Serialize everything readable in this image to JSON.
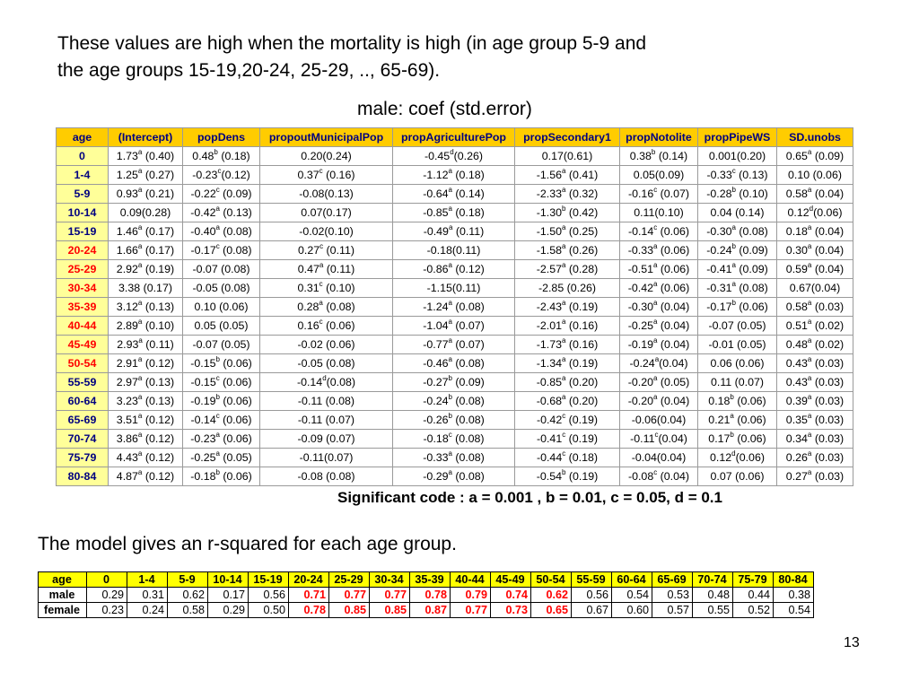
{
  "intro": {
    "line1": "These values are high when the mortality is high (in age group 5-9 and",
    "line2": "the age groups 15-19,20-24, 25-29, .., 65-69)."
  },
  "subtitle": "male: coef (std.error)",
  "coef_table": {
    "headers": [
      "age",
      "(Intercept)",
      "popDens",
      "propoutMunicipalPop",
      "propAgriculturePop",
      "propSecondary1",
      "propNotolite",
      "propPipeWS",
      "SD.unobs"
    ],
    "rows": [
      {
        "age": "0",
        "red": false,
        "cells": [
          [
            "1.73",
            "a",
            " (0.40)"
          ],
          [
            "0.48",
            "b",
            " (0.18)"
          ],
          [
            "0.20(0.24)",
            "",
            ""
          ],
          [
            "-0.45",
            "d",
            "(0.26)"
          ],
          [
            "0.17(0.61)",
            "",
            ""
          ],
          [
            "0.38",
            "b",
            " (0.14)"
          ],
          [
            "0.001(0.20)",
            "",
            ""
          ],
          [
            "0.65",
            "a",
            " (0.09)"
          ]
        ]
      },
      {
        "age": "1-4",
        "red": false,
        "cells": [
          [
            "1.25",
            "a",
            " (0.27)"
          ],
          [
            "-0.23",
            "c",
            "(0.12)"
          ],
          [
            "0.37",
            "c",
            " (0.16)"
          ],
          [
            "-1.12",
            "a",
            " (0.18)"
          ],
          [
            "-1.56",
            "a",
            " (0.41)"
          ],
          [
            "0.05(0.09)",
            "",
            ""
          ],
          [
            "-0.33",
            "c",
            " (0.13)"
          ],
          [
            "0.10 (0.06)",
            "",
            ""
          ]
        ]
      },
      {
        "age": "5-9",
        "red": false,
        "cells": [
          [
            "0.93",
            "a",
            " (0.21)"
          ],
          [
            "-0.22",
            "c",
            " (0.09)"
          ],
          [
            "-0.08(0.13)",
            "",
            ""
          ],
          [
            "-0.64",
            "a",
            " (0.14)"
          ],
          [
            "-2.33",
            "a",
            " (0.32)"
          ],
          [
            "-0.16",
            "c",
            " (0.07)"
          ],
          [
            "-0.28",
            "b",
            " (0.10)"
          ],
          [
            "0.58",
            "a",
            " (0.04)"
          ]
        ]
      },
      {
        "age": "10-14",
        "red": false,
        "cells": [
          [
            "0.09(0.28)",
            "",
            ""
          ],
          [
            "-0.42",
            "a",
            " (0.13)"
          ],
          [
            "0.07(0.17)",
            "",
            ""
          ],
          [
            "-0.85",
            "a",
            " (0.18)"
          ],
          [
            "-1.30",
            "b",
            " (0.42)"
          ],
          [
            "0.11(0.10)",
            "",
            ""
          ],
          [
            "0.04 (0.14)",
            "",
            ""
          ],
          [
            "0.12",
            "d",
            "(0.06)"
          ]
        ]
      },
      {
        "age": "15-19",
        "red": false,
        "cells": [
          [
            "1.46",
            "a",
            " (0.17)"
          ],
          [
            "-0.40",
            "a",
            " (0.08)"
          ],
          [
            "-0.02(0.10)",
            "",
            ""
          ],
          [
            "-0.49",
            "a",
            " (0.11)"
          ],
          [
            "-1.50",
            "a",
            " (0.25)"
          ],
          [
            "-0.14",
            "c",
            " (0.06)"
          ],
          [
            "-0.30",
            "a",
            " (0.08)"
          ],
          [
            "0.18",
            "a",
            " (0.04)"
          ]
        ]
      },
      {
        "age": "20-24",
        "red": true,
        "cells": [
          [
            "1.66",
            "a",
            " (0.17)"
          ],
          [
            "-0.17",
            "c",
            " (0.08)"
          ],
          [
            "0.27",
            "c",
            " (0.11)"
          ],
          [
            "-0.18(0.11)",
            "",
            ""
          ],
          [
            "-1.58",
            "a",
            " (0.26)"
          ],
          [
            "-0.33",
            "a",
            " (0.06)"
          ],
          [
            "-0.24",
            "b",
            " (0.09)"
          ],
          [
            "0.30",
            "a",
            " (0.04)"
          ]
        ]
      },
      {
        "age": "25-29",
        "red": true,
        "cells": [
          [
            "2.92",
            "a",
            " (0.19)"
          ],
          [
            "-0.07 (0.08)",
            "",
            ""
          ],
          [
            "0.47",
            "a",
            " (0.11)"
          ],
          [
            "-0.86",
            "a",
            " (0.12)"
          ],
          [
            "-2.57",
            "a",
            " (0.28)"
          ],
          [
            "-0.51",
            "a",
            " (0.06)"
          ],
          [
            "-0.41",
            "a",
            " (0.09)"
          ],
          [
            "0.59",
            "a",
            " (0.04)"
          ]
        ]
      },
      {
        "age": "30-34",
        "red": true,
        "cells": [
          [
            "3.38 (0.17)",
            "",
            ""
          ],
          [
            "-0.05 (0.08)",
            "",
            ""
          ],
          [
            "0.31",
            "c",
            " (0.10)"
          ],
          [
            "-1.15(0.11)",
            "",
            ""
          ],
          [
            "-2.85 (0.26)",
            "",
            ""
          ],
          [
            "-0.42",
            "a",
            " (0.06)"
          ],
          [
            "-0.31",
            "a",
            " (0.08)"
          ],
          [
            "0.67(0.04)",
            "",
            ""
          ]
        ]
      },
      {
        "age": "35-39",
        "red": true,
        "cells": [
          [
            "3.12",
            "a",
            " (0.13)"
          ],
          [
            "0.10 (0.06)",
            "",
            ""
          ],
          [
            "0.28",
            "a",
            " (0.08)"
          ],
          [
            "-1.24",
            "a",
            " (0.08)"
          ],
          [
            "-2.43",
            "a",
            " (0.19)"
          ],
          [
            "-0.30",
            "a",
            " (0.04)"
          ],
          [
            "-0.17",
            "b",
            " (0.06)"
          ],
          [
            "0.58",
            "a",
            " (0.03)"
          ]
        ]
      },
      {
        "age": "40-44",
        "red": true,
        "cells": [
          [
            "2.89",
            "a",
            " (0.10)"
          ],
          [
            "0.05 (0.05)",
            "",
            ""
          ],
          [
            "0.16",
            "c",
            " (0.06)"
          ],
          [
            "-1.04",
            "a",
            " (0.07)"
          ],
          [
            "-2.01",
            "a",
            " (0.16)"
          ],
          [
            "-0.25",
            "a",
            " (0.04)"
          ],
          [
            "-0.07 (0.05)",
            "",
            ""
          ],
          [
            "0.51",
            "a",
            " (0.02)"
          ]
        ]
      },
      {
        "age": "45-49",
        "red": true,
        "cells": [
          [
            "2.93",
            "a",
            " (0.11)"
          ],
          [
            "-0.07 (0.05)",
            "",
            ""
          ],
          [
            "-0.02 (0.06)",
            "",
            ""
          ],
          [
            "-0.77",
            "a",
            " (0.07)"
          ],
          [
            "-1.73",
            "a",
            " (0.16)"
          ],
          [
            "-0.19",
            "a",
            " (0.04)"
          ],
          [
            "-0.01 (0.05)",
            "",
            ""
          ],
          [
            "0.48",
            "a",
            " (0.02)"
          ]
        ]
      },
      {
        "age": "50-54",
        "red": true,
        "cells": [
          [
            "2.91",
            "a",
            " (0.12)"
          ],
          [
            "-0.15",
            "b",
            " (0.06)"
          ],
          [
            "-0.05 (0.08)",
            "",
            ""
          ],
          [
            "-0.46",
            "a",
            " (0.08)"
          ],
          [
            "-1.34",
            "a",
            " (0.19)"
          ],
          [
            "-0.24",
            "a",
            "(0.04)"
          ],
          [
            "0.06 (0.06)",
            "",
            ""
          ],
          [
            "0.43",
            "a",
            " (0.03)"
          ]
        ]
      },
      {
        "age": "55-59",
        "red": false,
        "cells": [
          [
            "2.97",
            "a",
            " (0.13)"
          ],
          [
            "-0.15",
            "c",
            " (0.06)"
          ],
          [
            "-0.14",
            "d",
            "(0.08)"
          ],
          [
            "-0.27",
            "b",
            " (0.09)"
          ],
          [
            "-0.85",
            "a",
            " (0.20)"
          ],
          [
            "-0.20",
            "a",
            " (0.05)"
          ],
          [
            "0.11 (0.07)",
            "",
            ""
          ],
          [
            "0.43",
            "a",
            " (0.03)"
          ]
        ]
      },
      {
        "age": "60-64",
        "red": false,
        "cells": [
          [
            "3.23",
            "a",
            " (0.13)"
          ],
          [
            "-0.19",
            "b",
            " (0.06)"
          ],
          [
            "-0.11 (0.08)",
            "",
            ""
          ],
          [
            "-0.24",
            "b",
            " (0.08)"
          ],
          [
            "-0.68",
            "a",
            " (0.20)"
          ],
          [
            "-0.20",
            "a",
            " (0.04)"
          ],
          [
            "0.18",
            "b",
            " (0.06)"
          ],
          [
            "0.39",
            "a",
            " (0.03)"
          ]
        ]
      },
      {
        "age": "65-69",
        "red": false,
        "cells": [
          [
            "3.51",
            "a",
            " (0.12)"
          ],
          [
            "-0.14",
            "c",
            " (0.06)"
          ],
          [
            "-0.11 (0.07)",
            "",
            ""
          ],
          [
            "-0.26",
            "b",
            " (0.08)"
          ],
          [
            "-0.42",
            "c",
            " (0.19)"
          ],
          [
            "-0.06(0.04)",
            "",
            ""
          ],
          [
            "0.21",
            "a",
            " (0.06)"
          ],
          [
            "0.35",
            "a",
            " (0.03)"
          ]
        ]
      },
      {
        "age": "70-74",
        "red": false,
        "cells": [
          [
            "3.86",
            "a",
            " (0.12)"
          ],
          [
            "-0.23",
            "a",
            " (0.06)"
          ],
          [
            "-0.09 (0.07)",
            "",
            ""
          ],
          [
            "-0.18",
            "c",
            " (0.08)"
          ],
          [
            "-0.41",
            "c",
            " (0.19)"
          ],
          [
            "-0.11",
            "c",
            "(0.04)"
          ],
          [
            "0.17",
            "b",
            " (0.06)"
          ],
          [
            "0.34",
            "a",
            " (0.03)"
          ]
        ]
      },
      {
        "age": "75-79",
        "red": false,
        "cells": [
          [
            "4.43",
            "a",
            " (0.12)"
          ],
          [
            "-0.25",
            "a",
            " (0.05)"
          ],
          [
            "-0.11(0.07)",
            "",
            ""
          ],
          [
            "-0.33",
            "a",
            " (0.08)"
          ],
          [
            "-0.44",
            "c",
            " (0.18)"
          ],
          [
            "-0.04(0.04)",
            "",
            ""
          ],
          [
            "0.12",
            "d",
            "(0.06)"
          ],
          [
            "0.26",
            "a",
            " (0.03)"
          ]
        ]
      },
      {
        "age": "80-84",
        "red": false,
        "cells": [
          [
            "4.87",
            "a",
            " (0.12)"
          ],
          [
            "-0.18",
            "b",
            " (0.06)"
          ],
          [
            "-0.08 (0.08)",
            "",
            ""
          ],
          [
            "-0.29",
            "a",
            " (0.08)"
          ],
          [
            "-0.54",
            "b",
            " (0.19)"
          ],
          [
            "-0.08",
            "c",
            " (0.04)"
          ],
          [
            "0.07 (0.06)",
            "",
            ""
          ],
          [
            "0.27",
            "a",
            " (0.03)"
          ]
        ]
      }
    ]
  },
  "significant_code": "Significant code : a = 0.001 , b = 0.01, c = 0.05, d = 0.1",
  "rsq_text": "The model gives an r-squared for each age group.",
  "rsq_table": {
    "headers": [
      "age",
      "0",
      "1-4",
      "5-9",
      "10-14",
      "15-19",
      "20-24",
      "25-29",
      "30-34",
      "35-39",
      "40-44",
      "45-49",
      "50-54",
      "55-59",
      "60-64",
      "65-69",
      "70-74",
      "75-79",
      "80-84"
    ],
    "highlight_columns": [
      "20-24",
      "25-29",
      "30-34",
      "35-39",
      "40-44",
      "45-49",
      "50-54"
    ],
    "rows": [
      {
        "label": "male",
        "values": [
          "0.29",
          "0.31",
          "0.62",
          "0.17",
          "0.56",
          "0.71",
          "0.77",
          "0.77",
          "0.78",
          "0.79",
          "0.74",
          "0.62",
          "0.56",
          "0.54",
          "0.53",
          "0.48",
          "0.44",
          "0.38"
        ]
      },
      {
        "label": "female",
        "values": [
          "0.23",
          "0.24",
          "0.58",
          "0.29",
          "0.50",
          "0.78",
          "0.85",
          "0.85",
          "0.87",
          "0.77",
          "0.73",
          "0.65",
          "0.67",
          "0.60",
          "0.57",
          "0.55",
          "0.52",
          "0.54"
        ]
      }
    ]
  },
  "page_number": "13",
  "colors": {
    "header_fill": "#ffcc00",
    "age_col_fill": "#ffff99",
    "header_text": "#000080",
    "highlight_red": "#ff0000",
    "rsq_header_fill": "#ffff00"
  }
}
